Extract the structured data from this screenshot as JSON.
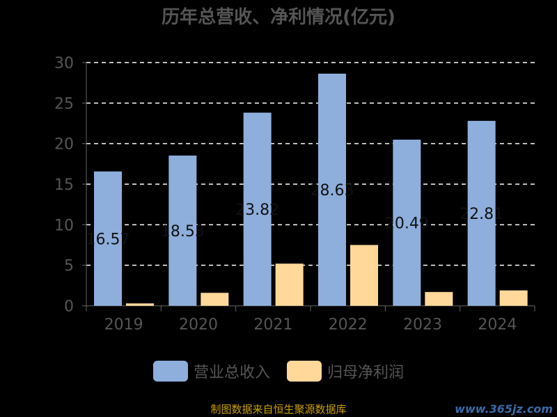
{
  "chart_data": {
    "type": "bar",
    "title": "历年总营收、净利情况(亿元)",
    "categories": [
      "2019",
      "2020",
      "2021",
      "2022",
      "2023",
      "2024"
    ],
    "series": [
      {
        "name": "营业总收入",
        "color": "#8eaedc",
        "values": [
          16.57,
          18.53,
          23.82,
          28.63,
          20.49,
          22.81
        ],
        "value_labels": [
          "16.57",
          "18.53",
          "23.82",
          "28.63",
          "20.49",
          "22.81"
        ]
      },
      {
        "name": "归母净利润",
        "color": "#ffd89a",
        "values": [
          0.3,
          1.6,
          5.2,
          7.5,
          1.7,
          1.9
        ]
      }
    ],
    "ylim": [
      0,
      30
    ],
    "yticks": [
      0,
      5,
      10,
      15,
      20,
      25,
      30
    ],
    "grid": true,
    "legend": "bottom"
  },
  "source_text": "制图数据来自恒生聚源数据库",
  "watermark": "www.365jz.com"
}
